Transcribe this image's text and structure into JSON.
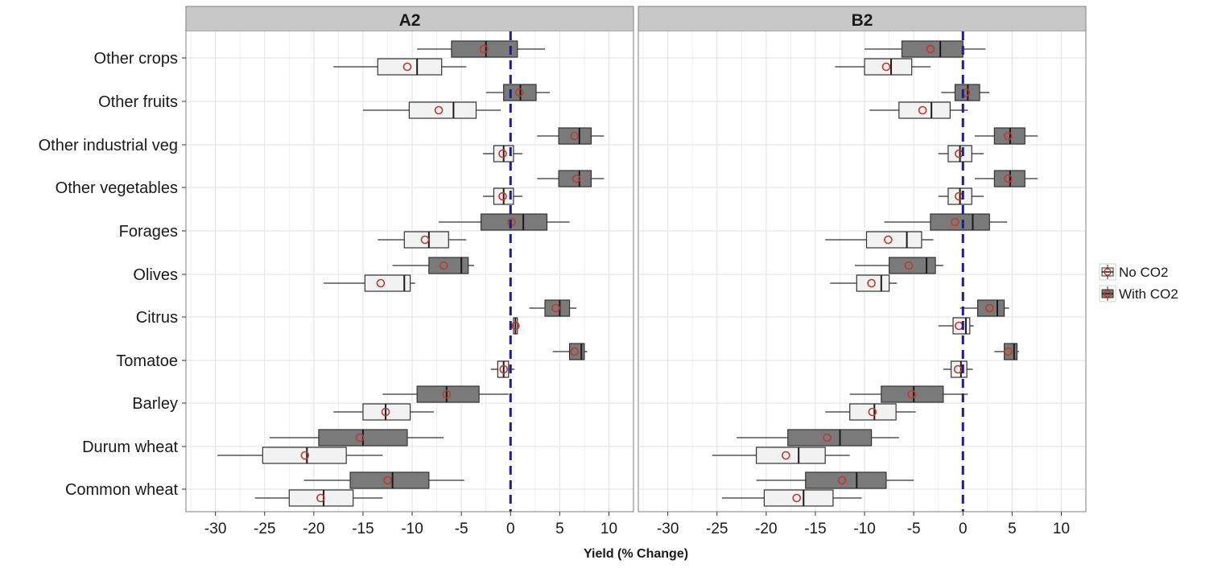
{
  "chart_data": {
    "type": "boxplot",
    "xlabel": "Yield (% Change)",
    "xlim": [
      -33,
      12.5
    ],
    "xticks": [
      -30,
      -25,
      -20,
      -15,
      -10,
      -5,
      0,
      5,
      10
    ],
    "xtick_labels": [
      "-30",
      "-25",
      "-20",
      "-15",
      "-10",
      "-5",
      "0",
      "5",
      "10"
    ],
    "reference_line_x": 0,
    "grid": true,
    "legend_position": "right",
    "categories": [
      "Other crops",
      "Other fruits",
      "Other industrial veg",
      "Other vegetables",
      "Forages",
      "Olives",
      "Citrus",
      "Tomatoe",
      "Barley",
      "Durum wheat",
      "Common wheat"
    ],
    "series": [
      {
        "name": "No CO2",
        "fill": "#f2f2f2",
        "mean_marker": "circle"
      },
      {
        "name": "With CO2",
        "fill": "#7a7a7a",
        "mean_marker": "circle"
      }
    ],
    "colors": {
      "no_co2_fill": "#f2f2f2",
      "with_co2_fill": "#7a7a7a",
      "mean_marker": "#c0392b",
      "zero_line": "#1a1aa0",
      "strip": "#c8c8c8",
      "grid": "#e2e2e2"
    },
    "panels": [
      {
        "name": "A2",
        "data": {
          "Other crops": {
            "With CO2": {
              "min": -9.5,
              "q1": -6,
              "median": -2.5,
              "q3": 0.7,
              "max": 3.5,
              "mean": -2.7
            },
            "No CO2": {
              "min": -18,
              "q1": -13.5,
              "median": -9.5,
              "q3": -7,
              "max": -4.5,
              "mean": -10.5
            }
          },
          "Other fruits": {
            "With CO2": {
              "min": -2.5,
              "q1": -0.7,
              "median": 1,
              "q3": 2.6,
              "max": 4,
              "mean": 0.9
            },
            "No CO2": {
              "min": -15,
              "q1": -10.3,
              "median": -5.8,
              "q3": -3.5,
              "max": -1,
              "mean": -7.3
            }
          },
          "Other industrial veg": {
            "With CO2": {
              "min": 2.7,
              "q1": 4.9,
              "median": 7,
              "q3": 8.2,
              "max": 9.5,
              "mean": 6.5
            },
            "No CO2": {
              "min": -2.8,
              "q1": -1.7,
              "median": -0.7,
              "q3": 0.3,
              "max": 1.2,
              "mean": -0.8
            }
          },
          "Other vegetables": {
            "With CO2": {
              "min": 2.7,
              "q1": 4.9,
              "median": 7,
              "q3": 8.2,
              "max": 9.5,
              "mean": 6.7
            },
            "No CO2": {
              "min": -2.8,
              "q1": -1.7,
              "median": -0.7,
              "q3": 0.3,
              "max": 1.2,
              "mean": -0.8
            }
          },
          "Forages": {
            "With CO2": {
              "min": -7.3,
              "q1": -3,
              "median": 1.3,
              "q3": 3.7,
              "max": 6,
              "mean": 0.1
            },
            "No CO2": {
              "min": -13.5,
              "q1": -10.8,
              "median": -8.3,
              "q3": -6.3,
              "max": -4.5,
              "mean": -8.7
            }
          },
          "Olives": {
            "With CO2": {
              "min": -12,
              "q1": -8.3,
              "median": -5,
              "q3": -4.3,
              "max": -3.7,
              "mean": -6.8
            },
            "No CO2": {
              "min": -19,
              "q1": -14.8,
              "median": -10.8,
              "q3": -10.2,
              "max": -9.7,
              "mean": -13.2
            }
          },
          "Citrus": {
            "With CO2": {
              "min": 1.9,
              "q1": 3.5,
              "median": 5,
              "q3": 6,
              "max": 6.7,
              "mean": 4.6
            },
            "No CO2": {
              "min": 0.1,
              "q1": 0.3,
              "median": 0.5,
              "q3": 0.7,
              "max": 0.9,
              "mean": 0.5
            }
          },
          "Tomatoe": {
            "With CO2": {
              "min": 4.3,
              "q1": 6,
              "median": 7.2,
              "q3": 7.5,
              "max": 7.8,
              "mean": 6.5
            },
            "No CO2": {
              "min": -2,
              "q1": -1.3,
              "median": -0.7,
              "q3": -0.2,
              "max": 0.4,
              "mean": -0.7
            }
          },
          "Barley": {
            "With CO2": {
              "min": -13,
              "q1": -9.5,
              "median": -6.5,
              "q3": -3.2,
              "max": -0.2,
              "mean": -6.5
            },
            "No CO2": {
              "min": -18,
              "q1": -15,
              "median": -12.7,
              "q3": -10.2,
              "max": -7.8,
              "mean": -12.7
            }
          },
          "Durum wheat": {
            "With CO2": {
              "min": -24.5,
              "q1": -19.5,
              "median": -15,
              "q3": -10.5,
              "max": -6.8,
              "mean": -15.3
            },
            "No CO2": {
              "min": -29.8,
              "q1": -25.2,
              "median": -20.7,
              "q3": -16.7,
              "max": -13,
              "mean": -20.9
            }
          },
          "Common wheat": {
            "With CO2": {
              "min": -21,
              "q1": -16.3,
              "median": -12,
              "q3": -8.3,
              "max": -4.7,
              "mean": -12.5
            },
            "No CO2": {
              "min": -26,
              "q1": -22.5,
              "median": -19,
              "q3": -16,
              "max": -13,
              "mean": -19.3
            }
          }
        }
      },
      {
        "name": "B2",
        "data": {
          "Other crops": {
            "With CO2": {
              "min": -10,
              "q1": -6.2,
              "median": -2.3,
              "q3": 0,
              "max": 2.3,
              "mean": -3.3
            },
            "No CO2": {
              "min": -13,
              "q1": -10,
              "median": -7.3,
              "q3": -5.2,
              "max": -3.3,
              "mean": -7.8
            }
          },
          "Other fruits": {
            "With CO2": {
              "min": -2.2,
              "q1": -0.8,
              "median": 0.5,
              "q3": 1.7,
              "max": 2.7,
              "mean": 0.3
            },
            "No CO2": {
              "min": -9.5,
              "q1": -6.5,
              "median": -3.2,
              "q3": -1.3,
              "max": 0.5,
              "mean": -4.1
            }
          },
          "Other industrial veg": {
            "With CO2": {
              "min": 1.2,
              "q1": 3.2,
              "median": 4.8,
              "q3": 6.3,
              "max": 7.6,
              "mean": 4.6
            },
            "No CO2": {
              "min": -2.5,
              "q1": -1.5,
              "median": -0.3,
              "q3": 0.9,
              "max": 2.1,
              "mean": -0.4
            }
          },
          "Other vegetables": {
            "With CO2": {
              "min": 1.2,
              "q1": 3.2,
              "median": 4.8,
              "q3": 6.3,
              "max": 7.6,
              "mean": 4.6
            },
            "No CO2": {
              "min": -2.5,
              "q1": -1.5,
              "median": -0.3,
              "q3": 0.9,
              "max": 2.1,
              "mean": -0.4
            }
          },
          "Forages": {
            "With CO2": {
              "min": -8,
              "q1": -3.3,
              "median": 1,
              "q3": 2.7,
              "max": 4.5,
              "mean": -0.8
            },
            "No CO2": {
              "min": -14,
              "q1": -9.8,
              "median": -5.7,
              "q3": -4.2,
              "max": -3,
              "mean": -7.6
            }
          },
          "Olives": {
            "With CO2": {
              "min": -11,
              "q1": -7.5,
              "median": -3.7,
              "q3": -2.8,
              "max": -2,
              "mean": -5.5
            },
            "No CO2": {
              "min": -13.5,
              "q1": -10.8,
              "median": -8.3,
              "q3": -7.5,
              "max": -6.7,
              "mean": -9.3
            }
          },
          "Citrus": {
            "With CO2": {
              "min": -0.3,
              "q1": 1.5,
              "median": 3.5,
              "q3": 4.2,
              "max": 4.7,
              "mean": 2.7
            },
            "No CO2": {
              "min": -2.5,
              "q1": -1,
              "median": 0.3,
              "q3": 0.7,
              "max": 1.1,
              "mean": -0.4
            }
          },
          "Tomatoe": {
            "With CO2": {
              "min": 3.2,
              "q1": 4.2,
              "median": 5.2,
              "q3": 5.5,
              "max": 5.7,
              "mean": 4.6
            },
            "No CO2": {
              "min": -2,
              "q1": -1.2,
              "median": -0.2,
              "q3": 0.4,
              "max": 1,
              "mean": -0.5
            }
          },
          "Barley": {
            "With CO2": {
              "min": -11.5,
              "q1": -8.3,
              "median": -5,
              "q3": -2,
              "max": 0.5,
              "mean": -5.2
            },
            "No CO2": {
              "min": -14,
              "q1": -11.5,
              "median": -9,
              "q3": -6.8,
              "max": -4.8,
              "mean": -9.2
            }
          },
          "Durum wheat": {
            "With CO2": {
              "min": -23,
              "q1": -17.8,
              "median": -12.5,
              "q3": -9.3,
              "max": -6.5,
              "mean": -13.8
            },
            "No CO2": {
              "min": -25.5,
              "q1": -21,
              "median": -16.7,
              "q3": -14,
              "max": -11.5,
              "mean": -18
            }
          },
          "Common wheat": {
            "With CO2": {
              "min": -21,
              "q1": -16,
              "median": -10.8,
              "q3": -7.8,
              "max": -5,
              "mean": -12.3
            },
            "No CO2": {
              "min": -24.5,
              "q1": -20.2,
              "median": -16.2,
              "q3": -13.2,
              "max": -10.3,
              "mean": -16.9
            }
          }
        }
      }
    ]
  }
}
